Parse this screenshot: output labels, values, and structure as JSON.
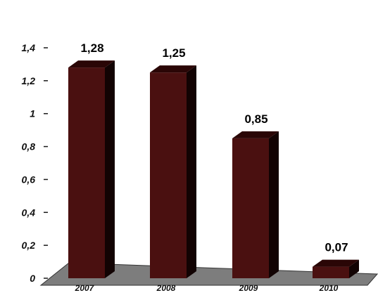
{
  "title_text": "",
  "chart_data": {
    "type": "bar",
    "title": "",
    "xlabel": "",
    "ylabel": "",
    "categories": [
      "2007",
      "2008",
      "2009",
      "2010"
    ],
    "values": [
      1.28,
      1.25,
      0.85,
      0.07
    ],
    "value_labels": [
      "1,28",
      "1,25",
      "0,85",
      "0,07"
    ],
    "y_ticks": [
      "0",
      "0,2",
      "0,4",
      "0,6",
      "0,8",
      "1",
      "1,2",
      "1,4"
    ],
    "ylim": [
      0,
      1.4
    ],
    "grid": false,
    "legend": "none",
    "style": "3d",
    "colors": {
      "bar_front": "#4a1010",
      "bar_side": "#120303",
      "bar_top": "#2a0606",
      "floor": "#7d7d7d",
      "tick_axis": "#1a1a1a"
    }
  }
}
